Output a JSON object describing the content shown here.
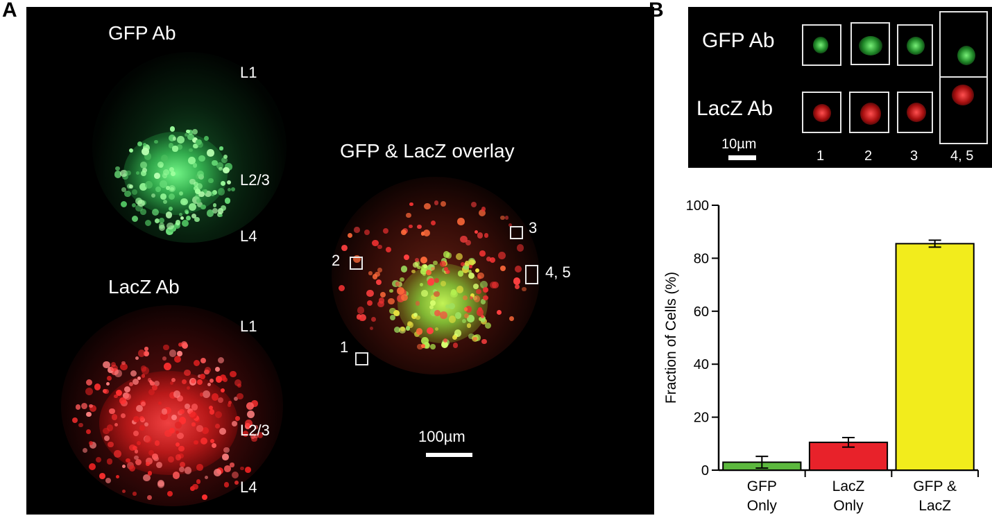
{
  "panel_a": {
    "letter": "A",
    "gfp_title": "GFP Ab",
    "lacz_title": "LacZ Ab",
    "overlay_title": "GFP & LacZ overlay",
    "gfp_layers": [
      "L1",
      "L2/3",
      "L4"
    ],
    "lacz_layers": [
      "L1",
      "L2/3",
      "L4"
    ],
    "cell_markers": [
      "1",
      "2",
      "3",
      "4, 5"
    ],
    "scale_bar": "100µm"
  },
  "panel_b": {
    "letter": "B",
    "row_labels": [
      "GFP Ab",
      "LacZ Ab"
    ],
    "scale_bar": "10µm",
    "inset_labels": [
      "1",
      "2",
      "3",
      "4, 5"
    ]
  },
  "chart_data": {
    "type": "bar",
    "categories": [
      [
        "GFP",
        "Only"
      ],
      [
        "LacZ",
        "Only"
      ],
      [
        "GFP &",
        "LacZ"
      ]
    ],
    "values": [
      3,
      10.5,
      85.5
    ],
    "errors": [
      2.2,
      1.8,
      1.3
    ],
    "colors": [
      "#5cb83e",
      "#e8222a",
      "#f2ec1c"
    ],
    "ylabel": "Fraction of Cells (%)",
    "ylim": [
      0,
      100
    ],
    "yticks": [
      0,
      20,
      40,
      60,
      80,
      100
    ],
    "grid": false
  }
}
